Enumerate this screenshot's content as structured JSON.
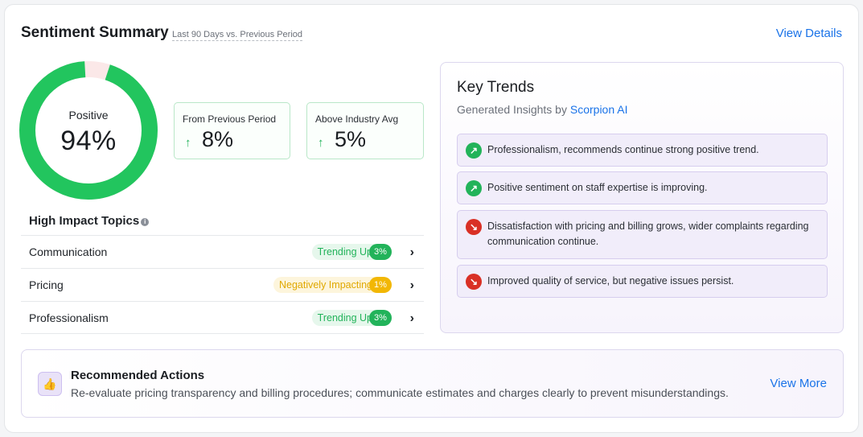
{
  "header": {
    "title": "Sentiment Summary",
    "subtitle": "Last 90 Days vs. Previous Period",
    "view_details": "View Details"
  },
  "donut": {
    "label": "Positive",
    "value_text": "94%",
    "positive_fraction": 0.94,
    "positive_color": "#22c55e",
    "remainder_color": "#fbe8e8"
  },
  "stats": [
    {
      "label": "From Previous Period",
      "arrow": "↑",
      "value": "8%"
    },
    {
      "label": "Above Industry Avg",
      "arrow": "↑",
      "value": "5%"
    }
  ],
  "topics": {
    "heading": "High Impact Topics",
    "info_glyph": "i",
    "rows": [
      {
        "name": "Communication",
        "status": "Trending Up",
        "pct": "3%",
        "kind": "up"
      },
      {
        "name": "Pricing",
        "status": "Negatively Impacting",
        "pct": "1%",
        "kind": "neg"
      },
      {
        "name": "Professionalism",
        "status": "Trending Up",
        "pct": "3%",
        "kind": "up"
      }
    ],
    "chevron": "›"
  },
  "trends": {
    "title": "Key Trends",
    "subtitle_prefix": "Generated Insights by",
    "brand": "Scorpion AI",
    "items": [
      {
        "direction": "up",
        "glyph": "↗",
        "text": "Professionalism, recommends continue strong positive trend."
      },
      {
        "direction": "up",
        "glyph": "↗",
        "text": "Positive sentiment on staff expertise is improving."
      },
      {
        "direction": "down",
        "glyph": "↘",
        "text": "Dissatisfaction with pricing and billing grows, wider complaints regarding communication continue."
      },
      {
        "direction": "down",
        "glyph": "↘",
        "text": "Improved quality of service, but negative issues persist."
      }
    ]
  },
  "actions": {
    "icon": "thumbs-up-icon",
    "icon_glyph": "👍",
    "title": "Recommended Actions",
    "text": "Re-evaluate pricing transparency and billing procedures; communicate estimates and charges clearly to prevent misunderstandings.",
    "view_more": "View More"
  }
}
